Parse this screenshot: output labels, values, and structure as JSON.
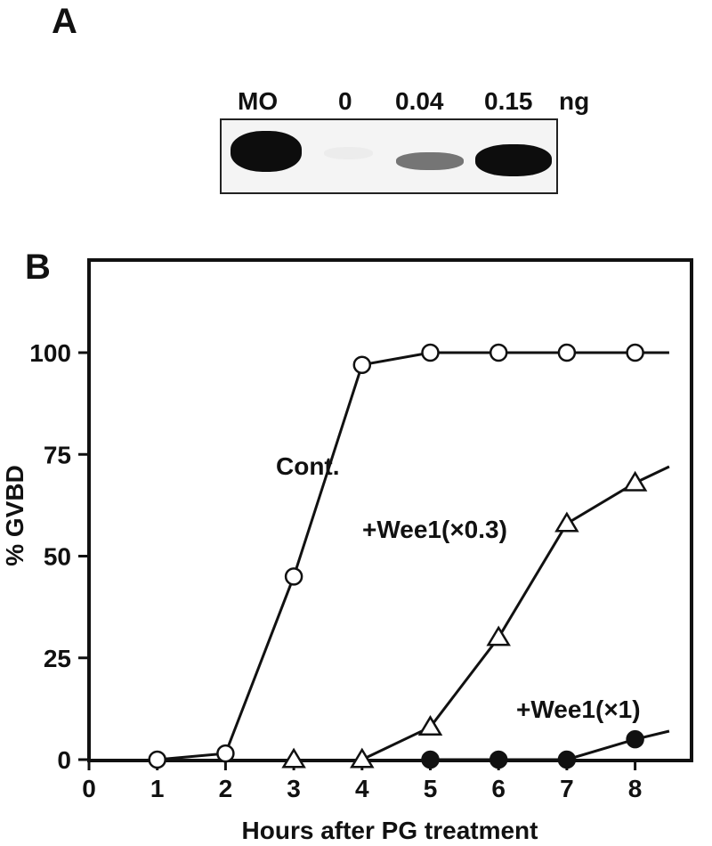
{
  "panels": {
    "a": "A",
    "b": "B"
  },
  "blot": {
    "lanes": [
      {
        "label": "MO",
        "intensity": 1.0
      },
      {
        "label": "0",
        "intensity": 0.03
      },
      {
        "label": "0.04",
        "intensity": 0.55
      },
      {
        "label": "0.15",
        "intensity": 1.0
      }
    ],
    "unit": "ng"
  },
  "chart_data": {
    "type": "line",
    "xlabel": "Hours after PG treatment",
    "ylabel": "% GVBD",
    "xlim": [
      0,
      8.8
    ],
    "ylim": [
      0,
      115
    ],
    "x_ticks": [
      0,
      1,
      2,
      3,
      4,
      5,
      6,
      7,
      8
    ],
    "y_ticks": [
      0,
      25,
      50,
      75,
      100
    ],
    "grid": false,
    "series": [
      {
        "name": "Cont.",
        "marker": "open-circle",
        "x": [
          1,
          2,
          3,
          4,
          5,
          6,
          7,
          8
        ],
        "y": [
          0,
          1.5,
          45,
          97,
          100,
          100,
          100,
          100
        ],
        "line_end": [
          8.5,
          100
        ]
      },
      {
        "name": "+Wee1(×0.3)",
        "marker": "open-triangle",
        "x": [
          3,
          4,
          5,
          6,
          7,
          8
        ],
        "y": [
          0,
          0,
          8,
          30,
          58,
          68
        ],
        "line_end": [
          8.5,
          72
        ],
        "line_start_x": 4
      },
      {
        "name": "+Wee1(×1)",
        "marker": "filled-circle",
        "x": [
          5,
          6,
          7,
          8
        ],
        "y": [
          0,
          0,
          0,
          5
        ],
        "line_end": [
          8.5,
          7
        ]
      }
    ]
  }
}
